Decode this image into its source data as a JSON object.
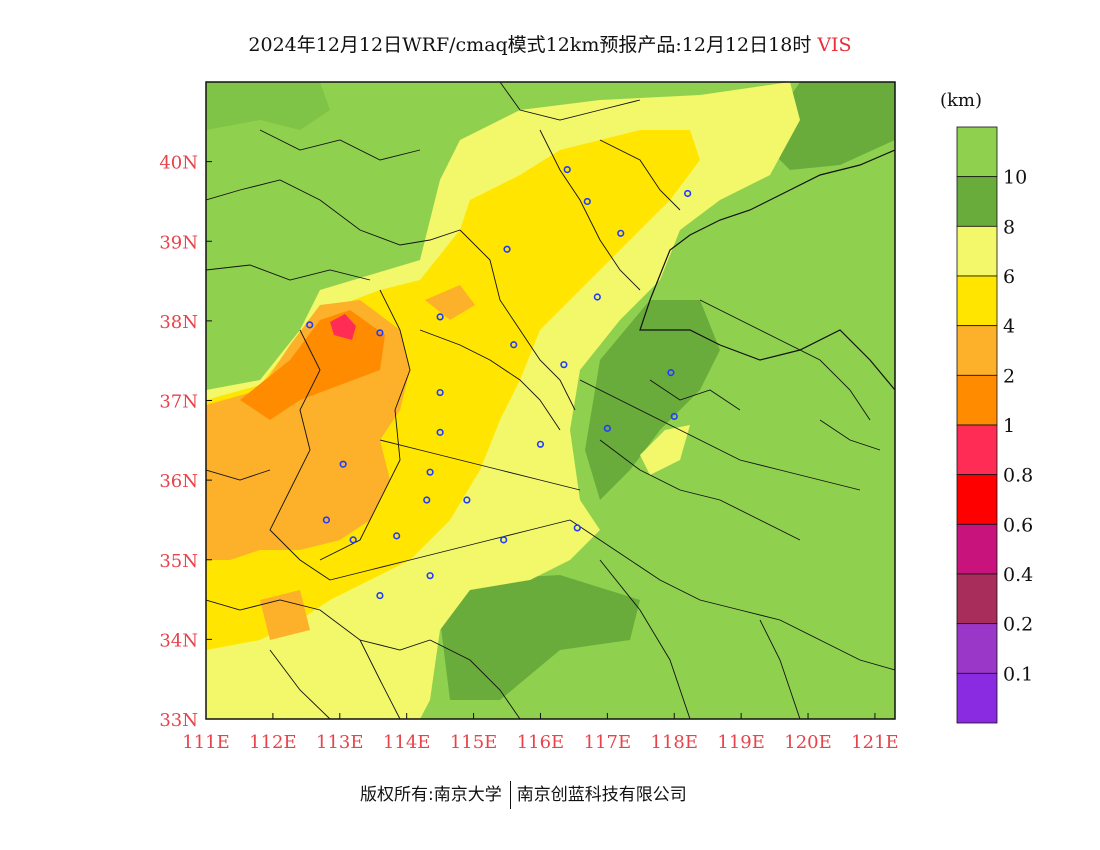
{
  "title": {
    "main": "2024年12月12日WRF/cmaq模式12km预报产品:12月12日18时",
    "variable": "VIS"
  },
  "colorbar": {
    "unit": "(km)",
    "labels": [
      "10",
      "8",
      "6",
      "4",
      "2",
      "1",
      "0.8",
      "0.6",
      "0.4",
      "0.2",
      "0.1"
    ],
    "colors": [
      "#8fd14f",
      "#6aac3c",
      "#f3f76a",
      "#ffe500",
      "#fdb02a",
      "#ff8c00",
      "#ff2d55",
      "#ff0000",
      "#c8137d",
      "#a82d5a",
      "#9b37c8",
      "#8a2be2"
    ]
  },
  "axes": {
    "x_ticks": [
      "111E",
      "112E",
      "113E",
      "114E",
      "115E",
      "116E",
      "117E",
      "118E",
      "119E",
      "120E",
      "121E"
    ],
    "y_ticks": [
      "40N",
      "39N",
      "38N",
      "37N",
      "36N",
      "35N",
      "34N",
      "33N"
    ],
    "tick_color": "#e8434a"
  },
  "map": {
    "lon_range": [
      111,
      121.3
    ],
    "lat_range": [
      33,
      41
    ],
    "stations": [
      [
        116.4,
        39.9
      ],
      [
        116.7,
        39.5
      ],
      [
        117.2,
        39.1
      ],
      [
        118.2,
        39.6
      ],
      [
        115.5,
        38.9
      ],
      [
        116.85,
        38.3
      ],
      [
        114.5,
        38.05
      ],
      [
        112.55,
        37.95
      ],
      [
        113.6,
        37.85
      ],
      [
        115.6,
        37.7
      ],
      [
        116.35,
        37.45
      ],
      [
        117.95,
        37.35
      ],
      [
        118.0,
        36.8
      ],
      [
        117.0,
        36.65
      ],
      [
        114.5,
        37.1
      ],
      [
        114.5,
        36.6
      ],
      [
        116.0,
        36.45
      ],
      [
        113.05,
        36.2
      ],
      [
        114.35,
        36.1
      ],
      [
        114.3,
        35.75
      ],
      [
        114.9,
        35.75
      ],
      [
        112.8,
        35.5
      ],
      [
        113.85,
        35.3
      ],
      [
        113.2,
        35.25
      ],
      [
        115.45,
        35.25
      ],
      [
        116.55,
        35.4
      ],
      [
        114.35,
        34.8
      ],
      [
        113.6,
        34.55
      ]
    ]
  },
  "footer": {
    "left": "版权所有:南京大学",
    "right": "南京创蓝科技有限公司"
  }
}
